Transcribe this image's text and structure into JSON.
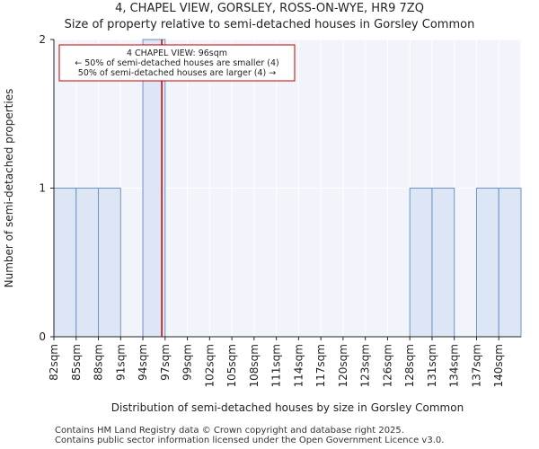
{
  "chart_data": {
    "type": "bar",
    "title": "4, CHAPEL VIEW, GORSLEY, ROSS-ON-WYE, HR9 7ZQ",
    "subtitle": "Size of property relative to semi-detached houses in Gorsley Common",
    "xlabel": "Distribution of semi-detached houses by size in Gorsley Common",
    "ylabel": "Number of semi-detached properties",
    "categories": [
      "82sqm",
      "85sqm",
      "88sqm",
      "91sqm",
      "94sqm",
      "97sqm",
      "99sqm",
      "102sqm",
      "105sqm",
      "108sqm",
      "111sqm",
      "114sqm",
      "117sqm",
      "120sqm",
      "123sqm",
      "126sqm",
      "128sqm",
      "131sqm",
      "134sqm",
      "137sqm",
      "140sqm"
    ],
    "values": [
      1,
      1,
      1,
      0,
      2,
      0,
      0,
      0,
      0,
      0,
      0,
      0,
      0,
      0,
      0,
      0,
      1,
      1,
      0,
      1,
      1
    ],
    "ylim": [
      0,
      2
    ],
    "yticks": [
      0,
      1,
      2
    ],
    "marker": {
      "value_sqm": 96,
      "position_bins": 4.85,
      "color": "#c00000"
    },
    "annotation": {
      "line1": "4 CHAPEL VIEW: 96sqm",
      "line2": "← 50% of semi-detached houses are smaller (4)",
      "line3": "50% of semi-detached houses are larger (4) →"
    },
    "colors": {
      "bar_fill": "#dce6f4",
      "bar_edge": "#6f93c8",
      "plot_bg": "#f1f5fb",
      "grid": "#ffffff",
      "annotation_border": "#c00000"
    }
  },
  "footer": {
    "line1": "Contains HM Land Registry data © Crown copyright and database right 2025.",
    "line2": "Contains public sector information licensed under the Open Government Licence v3.0."
  }
}
